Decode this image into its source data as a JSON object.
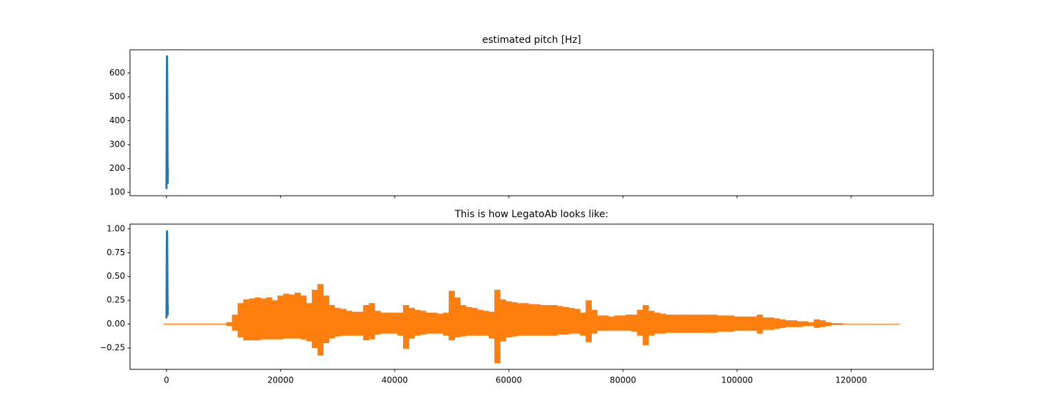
{
  "chart_data": [
    {
      "type": "line",
      "title": "estimated pitch [Hz]",
      "xlim": [
        -6400,
        134400
      ],
      "xticks": [
        0,
        20000,
        40000,
        60000,
        80000,
        100000,
        120000
      ],
      "xticklabels": false,
      "ylim": [
        86,
        697
      ],
      "yticks": [
        100,
        200,
        300,
        400,
        500,
        600
      ],
      "series": [
        {
          "color": "#1f77b4",
          "x": [
            0,
            30,
            60,
            90,
            120,
            150,
            180,
            210,
            240
          ],
          "values": [
            115,
            300,
            520,
            670,
            610,
            450,
            250,
            140,
            200
          ]
        }
      ]
    },
    {
      "type": "line",
      "title": "This is how LegatoAb looks like:",
      "xlim": [
        -6400,
        134400
      ],
      "xticks": [
        0,
        20000,
        40000,
        60000,
        80000,
        100000,
        120000
      ],
      "xticklabels": true,
      "ylim": [
        -0.475,
        1.05
      ],
      "yticks": [
        {
          "value": -0.25,
          "label": "−0.25"
        },
        {
          "value": 0,
          "label": "0.00"
        },
        {
          "value": 0.25,
          "label": "0.25"
        },
        {
          "value": 0.5,
          "label": "0.50"
        },
        {
          "value": 0.75,
          "label": "0.75"
        },
        {
          "value": 1,
          "label": "1.00"
        }
      ],
      "series": [
        {
          "color": "#1f77b4",
          "x": [
            0,
            30,
            60,
            90,
            120,
            150,
            180,
            210,
            240
          ],
          "values": [
            0.06,
            0.4,
            0.8,
            0.975,
            0.9,
            0.6,
            0.3,
            0.1,
            0.2
          ]
        },
        {
          "color": "#ff7f0e",
          "band": true,
          "x": [
            0,
            1000,
            2000,
            3000,
            4000,
            5000,
            6000,
            7000,
            8000,
            9000,
            10000,
            11000,
            12000,
            13000,
            14000,
            15000,
            16000,
            17000,
            18000,
            19000,
            20000,
            21000,
            22000,
            23000,
            24000,
            25000,
            26000,
            27000,
            28000,
            29000,
            30000,
            31000,
            32000,
            33000,
            34000,
            35000,
            36000,
            37000,
            38000,
            39000,
            40000,
            41000,
            42000,
            43000,
            44000,
            45000,
            46000,
            47000,
            48000,
            49000,
            50000,
            51000,
            52000,
            53000,
            54000,
            55000,
            56000,
            57000,
            58000,
            59000,
            60000,
            61000,
            62000,
            63000,
            64000,
            65000,
            66000,
            67000,
            68000,
            69000,
            70000,
            71000,
            72000,
            73000,
            74000,
            75000,
            76000,
            77000,
            78000,
            79000,
            80000,
            81000,
            82000,
            83000,
            84000,
            85000,
            86000,
            87000,
            88000,
            89000,
            90000,
            91000,
            92000,
            93000,
            94000,
            95000,
            96000,
            97000,
            98000,
            99000,
            100000,
            101000,
            102000,
            103000,
            104000,
            105000,
            106000,
            107000,
            108000,
            109000,
            110000,
            111000,
            112000,
            113000,
            114000,
            115000,
            116000,
            117000,
            118000,
            119000,
            120000,
            121000,
            122000,
            123000,
            124000,
            125000,
            126000,
            127000,
            128000
          ],
          "values": [
            0.005,
            0.005,
            0.005,
            0.005,
            0.005,
            0.005,
            0.005,
            0.005,
            0.005,
            0.005,
            0.005,
            0.02,
            0.1,
            0.22,
            0.26,
            0.27,
            0.28,
            0.27,
            0.28,
            0.25,
            0.3,
            0.32,
            0.31,
            0.33,
            0.3,
            0.22,
            0.36,
            0.42,
            0.3,
            0.2,
            0.17,
            0.16,
            0.14,
            0.13,
            0.13,
            0.2,
            0.22,
            0.14,
            0.12,
            0.12,
            0.12,
            0.12,
            0.2,
            0.17,
            0.15,
            0.14,
            0.12,
            0.12,
            0.11,
            0.12,
            0.35,
            0.28,
            0.2,
            0.18,
            0.17,
            0.15,
            0.14,
            0.13,
            0.36,
            0.26,
            0.24,
            0.23,
            0.22,
            0.22,
            0.21,
            0.21,
            0.2,
            0.2,
            0.2,
            0.19,
            0.18,
            0.17,
            0.16,
            0.12,
            0.25,
            0.15,
            0.09,
            0.09,
            0.08,
            0.09,
            0.09,
            0.1,
            0.1,
            0.15,
            0.2,
            0.14,
            0.12,
            0.11,
            0.1,
            0.1,
            0.1,
            0.1,
            0.1,
            0.1,
            0.1,
            0.1,
            0.1,
            0.09,
            0.09,
            0.09,
            0.08,
            0.08,
            0.08,
            0.08,
            0.1,
            0.07,
            0.07,
            0.06,
            0.05,
            0.04,
            0.04,
            0.03,
            0.03,
            0.02,
            0.05,
            0.04,
            0.02,
            0.01,
            0.01,
            0.005,
            0.003,
            0.003,
            0.003,
            0.003,
            0.003,
            0.003,
            0.003,
            0.003,
            0.003
          ],
          "low_values": [
            -0.005,
            -0.005,
            -0.005,
            -0.005,
            -0.005,
            -0.005,
            -0.005,
            -0.005,
            -0.005,
            -0.005,
            -0.005,
            -0.02,
            -0.07,
            -0.14,
            -0.17,
            -0.17,
            -0.17,
            -0.16,
            -0.16,
            -0.16,
            -0.16,
            -0.15,
            -0.15,
            -0.15,
            -0.16,
            -0.18,
            -0.25,
            -0.33,
            -0.2,
            -0.15,
            -0.13,
            -0.12,
            -0.12,
            -0.12,
            -0.12,
            -0.17,
            -0.16,
            -0.11,
            -0.1,
            -0.1,
            -0.1,
            -0.12,
            -0.26,
            -0.15,
            -0.12,
            -0.11,
            -0.1,
            -0.1,
            -0.1,
            -0.12,
            -0.17,
            -0.14,
            -0.13,
            -0.12,
            -0.12,
            -0.12,
            -0.12,
            -0.15,
            -0.41,
            -0.18,
            -0.14,
            -0.13,
            -0.12,
            -0.12,
            -0.12,
            -0.12,
            -0.12,
            -0.12,
            -0.12,
            -0.11,
            -0.11,
            -0.1,
            -0.1,
            -0.12,
            -0.19,
            -0.1,
            -0.07,
            -0.07,
            -0.07,
            -0.07,
            -0.07,
            -0.07,
            -0.08,
            -0.12,
            -0.22,
            -0.12,
            -0.1,
            -0.1,
            -0.09,
            -0.09,
            -0.09,
            -0.09,
            -0.09,
            -0.09,
            -0.09,
            -0.09,
            -0.09,
            -0.08,
            -0.08,
            -0.08,
            -0.07,
            -0.07,
            -0.07,
            -0.07,
            -0.1,
            -0.06,
            -0.06,
            -0.05,
            -0.04,
            -0.03,
            -0.03,
            -0.03,
            -0.02,
            -0.02,
            -0.04,
            -0.03,
            -0.02,
            -0.01,
            -0.01,
            -0.005,
            -0.003,
            -0.003,
            -0.003,
            -0.003,
            -0.003,
            -0.003,
            -0.003,
            -0.003,
            -0.003
          ]
        }
      ]
    }
  ]
}
